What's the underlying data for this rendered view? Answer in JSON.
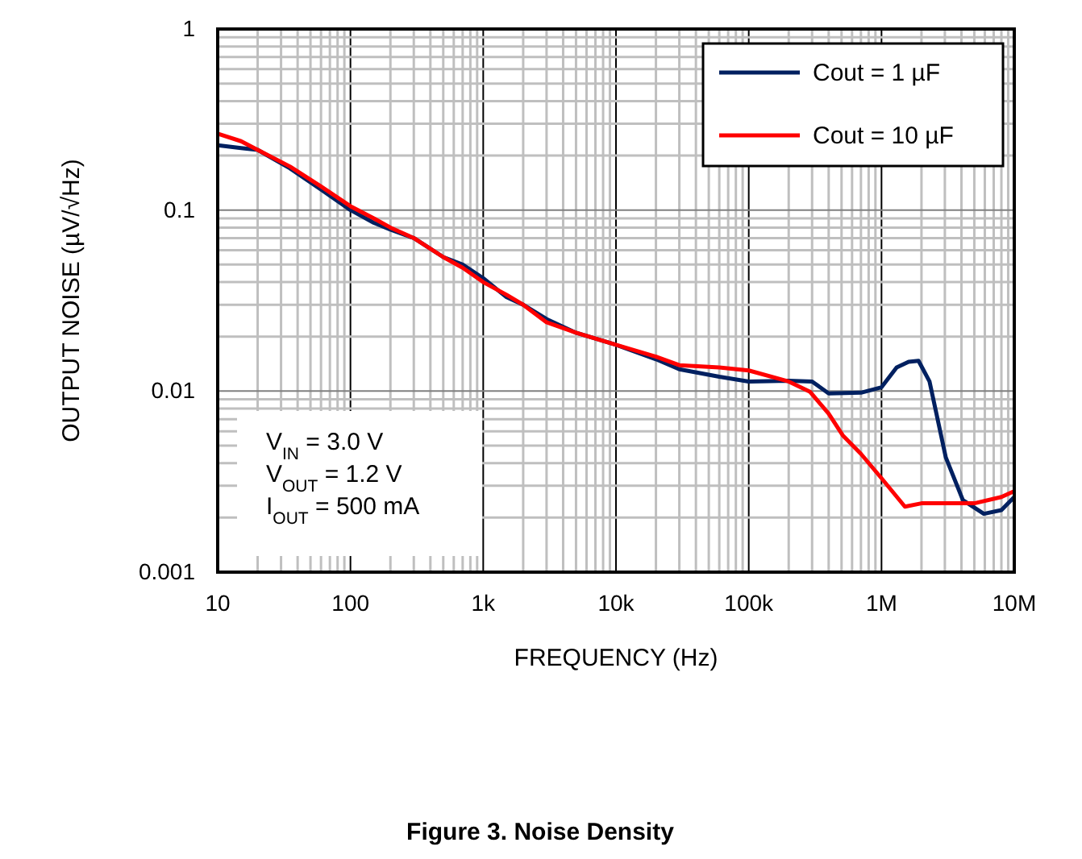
{
  "chart_data": {
    "type": "line",
    "title": "Figure 3. Noise Density",
    "xlabel": "FREQUENCY (Hz)",
    "ylabel": "OUTPUT NOISE (µV/√Hz)",
    "log": "xy",
    "grid": true,
    "legend": "top right",
    "line_style": "solid",
    "marker": "none",
    "xlim": [
      10,
      10000000
    ],
    "xticks": [
      {
        "value": 10,
        "label": "10"
      },
      {
        "value": 100,
        "label": "100"
      },
      {
        "value": 1000,
        "label": "1k"
      },
      {
        "value": 10000,
        "label": "10k"
      },
      {
        "value": 100000,
        "label": "100k"
      },
      {
        "value": 1000000,
        "label": "1M"
      },
      {
        "value": 10000000,
        "label": "10M"
      }
    ],
    "ylim": [
      0.001,
      1
    ],
    "yticks": [
      {
        "value": 0.001,
        "label": "0.001"
      },
      {
        "value": 0.01,
        "label": "0.01"
      },
      {
        "value": 0.1,
        "label": "0.1"
      },
      {
        "value": 1,
        "label": "1"
      }
    ],
    "annotations": [
      "V$_{IN}$ = 3.0 V",
      "V$_{OUT}$ = 1.2 V",
      "I$_{OUT}$ = 500 mA"
    ],
    "series": [
      {
        "name": "Cout = 1 µF",
        "color": "#002060",
        "x": [
          10,
          15,
          20,
          35,
          60,
          100,
          150,
          200,
          300,
          500,
          700,
          1000,
          1500,
          2000,
          3000,
          5000,
          10000,
          20000,
          30000,
          60000,
          100000,
          200000,
          300000,
          400000,
          700000,
          1000000,
          1300000,
          1600000,
          1900000,
          2300000,
          3050000,
          4100000,
          5900000,
          8000000,
          10000000
        ],
        "values": [
          0.228,
          0.22,
          0.215,
          0.17,
          0.13,
          0.1,
          0.085,
          0.078,
          0.07,
          0.055,
          0.05,
          0.042,
          0.033,
          0.03,
          0.025,
          0.021,
          0.018,
          0.015,
          0.0132,
          0.012,
          0.0113,
          0.0114,
          0.0113,
          0.0097,
          0.0098,
          0.0105,
          0.0135,
          0.0145,
          0.0147,
          0.0113,
          0.0043,
          0.0025,
          0.0021,
          0.0022,
          0.0026
        ]
      },
      {
        "name": "Cout = 10 µF",
        "color": "#ff0000",
        "x": [
          10,
          15,
          20,
          35,
          60,
          100,
          150,
          200,
          300,
          500,
          700,
          1000,
          1500,
          2000,
          3000,
          5000,
          10000,
          20000,
          30000,
          60000,
          100000,
          200000,
          290000,
          400000,
          510000,
          700000,
          1000000,
          1500000,
          2000000,
          3000000,
          5000000,
          8000000,
          10000000
        ],
        "values": [
          0.264,
          0.24,
          0.215,
          0.174,
          0.135,
          0.105,
          0.09,
          0.08,
          0.07,
          0.055,
          0.048,
          0.04,
          0.034,
          0.03,
          0.024,
          0.021,
          0.018,
          0.0155,
          0.0139,
          0.0135,
          0.013,
          0.0113,
          0.0099,
          0.0075,
          0.0057,
          0.0045,
          0.0033,
          0.0023,
          0.0024,
          0.0024,
          0.0024,
          0.0026,
          0.0028
        ]
      }
    ]
  }
}
